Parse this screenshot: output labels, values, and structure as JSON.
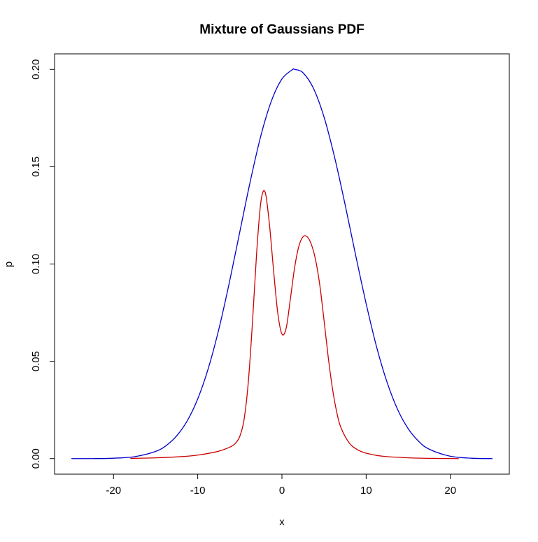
{
  "chart_data": {
    "type": "line",
    "title": "Mixture of Gaussians PDF",
    "xlabel": "x",
    "ylabel": "p",
    "xlim": [
      -27,
      27
    ],
    "ylim": [
      -0.008,
      0.208
    ],
    "xticks": [
      -20,
      -10,
      0,
      10,
      20
    ],
    "xtick_labels": [
      "-20",
      "-10",
      "0",
      "10",
      "20"
    ],
    "yticks": [
      0.0,
      0.05,
      0.1,
      0.15,
      0.2
    ],
    "ytick_labels": [
      "0.00",
      "0.05",
      "0.10",
      "0.15",
      "0.20"
    ],
    "grid": false,
    "series": [
      {
        "color": "#0000cc",
        "x": [
          -25,
          -22.5,
          -20,
          -17.5,
          -15,
          -13.75,
          -12.5,
          -11.25,
          -10,
          -8.75,
          -7.5,
          -6.25,
          -5,
          -3.75,
          -2.5,
          -1.25,
          0,
          1.25,
          1.5,
          2.5,
          3.75,
          5,
          6.25,
          7.5,
          8.75,
          10,
          11.25,
          12.5,
          13.75,
          15,
          16.25,
          17.5,
          20,
          22.5,
          25
        ],
        "y": [
          0.0,
          0.0,
          0.0002,
          0.001,
          0.0037,
          0.0067,
          0.0117,
          0.0194,
          0.0307,
          0.0463,
          0.0664,
          0.0904,
          0.1166,
          0.1427,
          0.166,
          0.1838,
          0.1951,
          0.1999,
          0.2,
          0.1983,
          0.1902,
          0.1755,
          0.1549,
          0.1305,
          0.1046,
          0.0796,
          0.0572,
          0.039,
          0.0251,
          0.0153,
          0.0088,
          0.0048,
          0.0012,
          0.0002,
          0.0
        ]
      },
      {
        "color": "#cc0000",
        "x": [
          -18,
          -15,
          -12,
          -10,
          -8,
          -7,
          -6,
          -5.5,
          -5,
          -4.5,
          -4,
          -3.5,
          -3,
          -2.5,
          -2,
          -1.5,
          -1,
          -0.5,
          0,
          0.5,
          1,
          1.5,
          2,
          2.5,
          3,
          3.5,
          4,
          4.5,
          5,
          5.5,
          6,
          6.5,
          7,
          8,
          9,
          10,
          12,
          15,
          18,
          21
        ],
        "y": [
          0.0001,
          0.0004,
          0.001,
          0.0018,
          0.0033,
          0.0045,
          0.0063,
          0.008,
          0.0115,
          0.02,
          0.039,
          0.07,
          0.106,
          0.132,
          0.137,
          0.121,
          0.097,
          0.075,
          0.064,
          0.067,
          0.082,
          0.098,
          0.109,
          0.114,
          0.114,
          0.11,
          0.102,
          0.089,
          0.071,
          0.052,
          0.036,
          0.024,
          0.016,
          0.008,
          0.0045,
          0.0028,
          0.0012,
          0.0004,
          0.0001,
          0.0
        ]
      }
    ]
  }
}
